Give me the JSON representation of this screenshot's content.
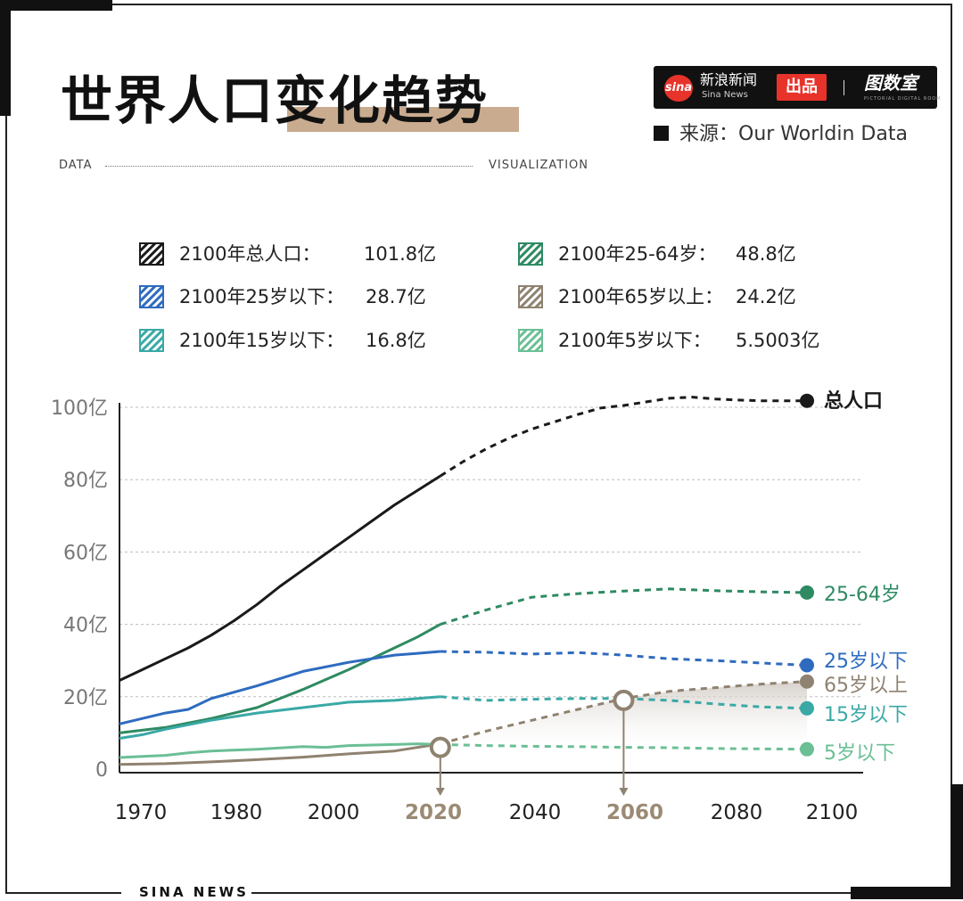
{
  "header": {
    "title": "世界人口变化趋势",
    "brand_name": "新浪新闻",
    "brand_sub": "Sina News",
    "brand_logo_text": "sina",
    "brand_badge": "出品",
    "brand_room": "图数室",
    "brand_room_sub": "PICTORIAL DIGITAL ROOM",
    "source": "来源：Our Worldin Data",
    "data_left": "DATA",
    "data_right": "VISUALIZATION"
  },
  "legend": [
    {
      "label": "2100年总人口：",
      "value": "101.8亿",
      "color": "#1a1a1a"
    },
    {
      "label": "2100年25-64岁：",
      "value": "48.8亿",
      "color": "#2e8a62"
    },
    {
      "label": "2100年25岁以下：",
      "value": "28.7亿",
      "color": "#2e6bbf"
    },
    {
      "label": "2100年65岁以上：",
      "value": "24.2亿",
      "color": "#8f8270"
    },
    {
      "label": "2100年15岁以下：",
      "value": "16.8亿",
      "color": "#3aa9a6"
    },
    {
      "label": "2100年5岁以下：",
      "value": "5.5003亿",
      "color": "#6bbf95"
    }
  ],
  "chart_data": {
    "type": "line",
    "title": "世界人口变化趋势",
    "xlabel": "",
    "ylabel": "",
    "x_ticks": [
      "1970",
      "1980",
      "2000",
      "2020",
      "2040",
      "2060",
      "2080",
      "2100"
    ],
    "highlight_ticks": [
      "2020",
      "2060"
    ],
    "y_ticks": [
      "0",
      "20亿",
      "40亿",
      "60亿",
      "80亿",
      "100亿"
    ],
    "ylim": [
      0,
      100
    ],
    "grid": true,
    "markers": [
      {
        "year": 2020,
        "value": 6
      },
      {
        "year": 2060,
        "value": 19
      }
    ],
    "series": [
      {
        "name": "总人口",
        "color": "#1a1a1a",
        "x": [
          1950,
          1955,
          1960,
          1965,
          1970,
          1975,
          1980,
          1985,
          1990,
          1995,
          2000,
          2005,
          2010,
          2015,
          2020,
          2025,
          2030,
          2035,
          2040,
          2045,
          2050,
          2055,
          2060,
          2065,
          2070,
          2075,
          2080,
          2085,
          2090,
          2095,
          2100
        ],
        "values": [
          24.5,
          27.5,
          30.5,
          33.5,
          37,
          41,
          45.5,
          50.5,
          55,
          59.5,
          64,
          68.5,
          73,
          77,
          81,
          85,
          88.5,
          91.5,
          94,
          96,
          98,
          99.8,
          100.5,
          101.5,
          102.5,
          102.8,
          102.3,
          102,
          101.8,
          101.8,
          101.8
        ],
        "solid_until": 2020
      },
      {
        "name": "25-64岁",
        "color": "#2e8a62",
        "x": [
          1950,
          1960,
          1970,
          1980,
          1990,
          2000,
          2010,
          2015,
          2020,
          2030,
          2040,
          2050,
          2060,
          2070,
          2080,
          2090,
          2100
        ],
        "values": [
          10,
          11.5,
          14,
          17,
          22,
          27.5,
          33.5,
          36.5,
          40,
          44,
          47.5,
          48.5,
          49.2,
          49.8,
          49.3,
          49,
          48.8
        ],
        "solid_until": 2020
      },
      {
        "name": "25岁以下",
        "color": "#2e6bbf",
        "x": [
          1950,
          1955,
          1960,
          1965,
          1970,
          1980,
          1990,
          2000,
          2010,
          2015,
          2020,
          2030,
          2040,
          2050,
          2060,
          2070,
          2080,
          2090,
          2100
        ],
        "values": [
          12.5,
          14,
          15.5,
          16.5,
          19.5,
          23,
          27,
          29.5,
          31.5,
          32,
          32.5,
          32.3,
          31.8,
          32.2,
          31.5,
          30.5,
          30,
          29.3,
          28.7
        ],
        "solid_until": 2020
      },
      {
        "name": "65岁以上",
        "color": "#8f8270",
        "x": [
          1950,
          1960,
          1970,
          1980,
          1990,
          2000,
          2010,
          2020,
          2030,
          2040,
          2050,
          2060,
          2070,
          2080,
          2090,
          2100
        ],
        "values": [
          1.3,
          1.5,
          2,
          2.6,
          3.3,
          4.2,
          5,
          7,
          10.5,
          13.5,
          16.5,
          19.5,
          21.5,
          22.5,
          23.5,
          24.2
        ],
        "solid_until": 2020,
        "fill": true
      },
      {
        "name": "15岁以下",
        "color": "#3aa9a6",
        "x": [
          1950,
          1955,
          1960,
          1970,
          1980,
          1990,
          2000,
          2010,
          2020,
          2030,
          2040,
          2050,
          2060,
          2070,
          2080,
          2090,
          2100
        ],
        "values": [
          8.5,
          9.5,
          11,
          13.5,
          15.5,
          17,
          18.5,
          19,
          20,
          19,
          19.3,
          19.5,
          19.5,
          19,
          18,
          17.2,
          16.8
        ],
        "solid_until": 2020
      },
      {
        "name": "5岁以下",
        "color": "#6bbf95",
        "x": [
          1950,
          1955,
          1960,
          1965,
          1970,
          1980,
          1990,
          1995,
          2000,
          2010,
          2015,
          2020,
          2030,
          2040,
          2050,
          2060,
          2070,
          2080,
          2090,
          2100
        ],
        "values": [
          3.2,
          3.5,
          3.8,
          4.5,
          5,
          5.5,
          6.2,
          6,
          6.5,
          6.8,
          7,
          6.8,
          6.5,
          6.3,
          6.2,
          6,
          5.9,
          5.7,
          5.6,
          5.5
        ],
        "solid_until": 2020
      }
    ]
  },
  "footer": {
    "text": "SINA NEWS"
  }
}
